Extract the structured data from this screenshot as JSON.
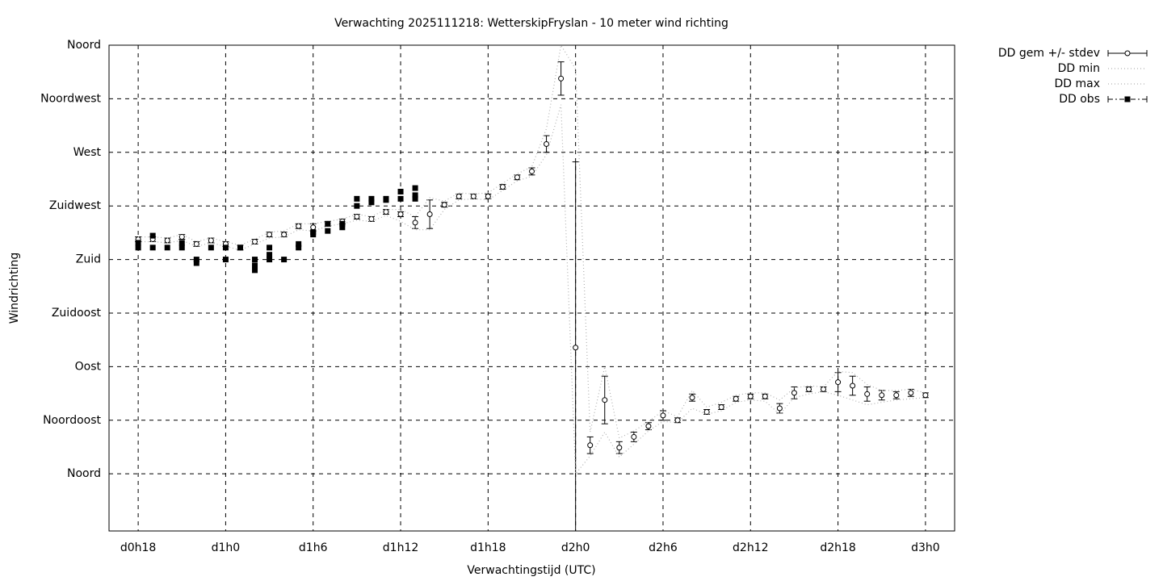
{
  "chart_data": {
    "type": "line",
    "title": "Verwachting 2025111218: WetterskipFryslan - 10 meter wind richting",
    "x_label": "Verwachtingstijd (UTC)",
    "y_label": "Windrichting",
    "xlim": [
      16,
      74
    ],
    "ylim": [
      -48,
      360
    ],
    "xticks": [
      {
        "value": 18,
        "label": "d0h18"
      },
      {
        "value": 24,
        "label": "d1h0"
      },
      {
        "value": 30,
        "label": "d1h6"
      },
      {
        "value": 36,
        "label": "d1h12"
      },
      {
        "value": 42,
        "label": "d1h18"
      },
      {
        "value": 48,
        "label": "d2h0"
      },
      {
        "value": 54,
        "label": "d2h6"
      },
      {
        "value": 60,
        "label": "d2h12"
      },
      {
        "value": 66,
        "label": "d2h18"
      },
      {
        "value": 72,
        "label": "d3h0"
      }
    ],
    "yticks": [
      {
        "value": 0,
        "label": "Noord"
      },
      {
        "value": 45,
        "label": "Noordoost"
      },
      {
        "value": 90,
        "label": "Oost"
      },
      {
        "value": 135,
        "label": "Zuidoost"
      },
      {
        "value": 180,
        "label": "Zuid"
      },
      {
        "value": 225,
        "label": "Zuidwest"
      },
      {
        "value": 270,
        "label": "West"
      },
      {
        "value": 315,
        "label": "Noordwest"
      },
      {
        "value": 360,
        "label": "Noord"
      }
    ],
    "grid": true,
    "legend": "right",
    "x": [
      18,
      19,
      20,
      21,
      22,
      23,
      24,
      25,
      26,
      27,
      28,
      29,
      30,
      31,
      32,
      33,
      34,
      35,
      36,
      37,
      38,
      39,
      40,
      41,
      42,
      43,
      44,
      45,
      46,
      47,
      48,
      49,
      50,
      51,
      52,
      53,
      54,
      55,
      56,
      57,
      58,
      59,
      60,
      61,
      62,
      63,
      64,
      65,
      66,
      67,
      68,
      69,
      70,
      71,
      72
    ],
    "series": [
      {
        "name": "DD gem +/- stdev",
        "style": "errorbars",
        "color": "#000000",
        "values": [
          197,
          197,
          196,
          199,
          193,
          196,
          193,
          190,
          195,
          201,
          201,
          208,
          207,
          210,
          212,
          216,
          214,
          220,
          218,
          211,
          218,
          226,
          233,
          233,
          233,
          241,
          249,
          254,
          277,
          332,
          106,
          24,
          62,
          22,
          31,
          40,
          49,
          45,
          64,
          52,
          56,
          63,
          65,
          65,
          55,
          68,
          71,
          71,
          77,
          74,
          67,
          66,
          66,
          68,
          66
        ],
        "errors": [
          2,
          2,
          2,
          2,
          2,
          2,
          2,
          2,
          2,
          2,
          2,
          2,
          3,
          2,
          2,
          2,
          2,
          2,
          2,
          5,
          12,
          2,
          2,
          2,
          2,
          2,
          2,
          3,
          7,
          14,
          156,
          7,
          20,
          5,
          4,
          3,
          4,
          2,
          3,
          2,
          2,
          2,
          2,
          2,
          4,
          5,
          2,
          2,
          8,
          8,
          6,
          4,
          3,
          3,
          2
        ]
      },
      {
        "name": "DD min",
        "style": "dotted",
        "color": "#b0b0b0",
        "values": [
          195,
          195,
          194,
          196,
          191,
          194,
          191,
          188,
          193,
          198,
          199,
          205,
          204,
          208,
          210,
          213,
          212,
          217,
          212,
          205,
          205,
          222,
          230,
          231,
          230,
          238,
          246,
          250,
          268,
          310,
          0,
          15,
          35,
          14,
          25,
          36,
          44,
          43,
          55,
          50,
          53,
          60,
          62,
          61,
          50,
          64,
          67,
          69,
          66,
          62,
          58,
          60,
          62,
          63,
          64
        ]
      },
      {
        "name": "DD max",
        "style": "dotted",
        "color": "#b0b0b0",
        "values": [
          199,
          199,
          198,
          201,
          195,
          198,
          195,
          192,
          197,
          203,
          204,
          210,
          210,
          212,
          214,
          218,
          216,
          222,
          222,
          216,
          232,
          229,
          236,
          235,
          236,
          244,
          252,
          258,
          290,
          360,
          340,
          35,
          90,
          30,
          36,
          44,
          53,
          48,
          70,
          56,
          60,
          66,
          68,
          68,
          62,
          72,
          74,
          73,
          86,
          85,
          75,
          70,
          70,
          71,
          68
        ]
      },
      {
        "name": "DD obs",
        "style": "points",
        "color": "#000000",
        "x": [
          18,
          18,
          19,
          19,
          20,
          21,
          21,
          22,
          22,
          23,
          24,
          24,
          25,
          26,
          26,
          26,
          27,
          27,
          27,
          28,
          29,
          29,
          30,
          30,
          31,
          31,
          32,
          32,
          33,
          33,
          34,
          34,
          35,
          35,
          36,
          36,
          37,
          37,
          37
        ],
        "values": [
          194,
          190,
          200,
          190,
          190,
          194,
          190,
          180,
          177,
          190,
          190,
          180,
          190,
          180,
          175,
          171,
          190,
          184,
          180,
          180,
          193,
          190,
          201,
          203,
          210,
          204,
          210,
          207,
          231,
          225,
          231,
          228,
          231,
          230,
          237,
          231,
          240,
          234,
          231
        ]
      }
    ]
  }
}
